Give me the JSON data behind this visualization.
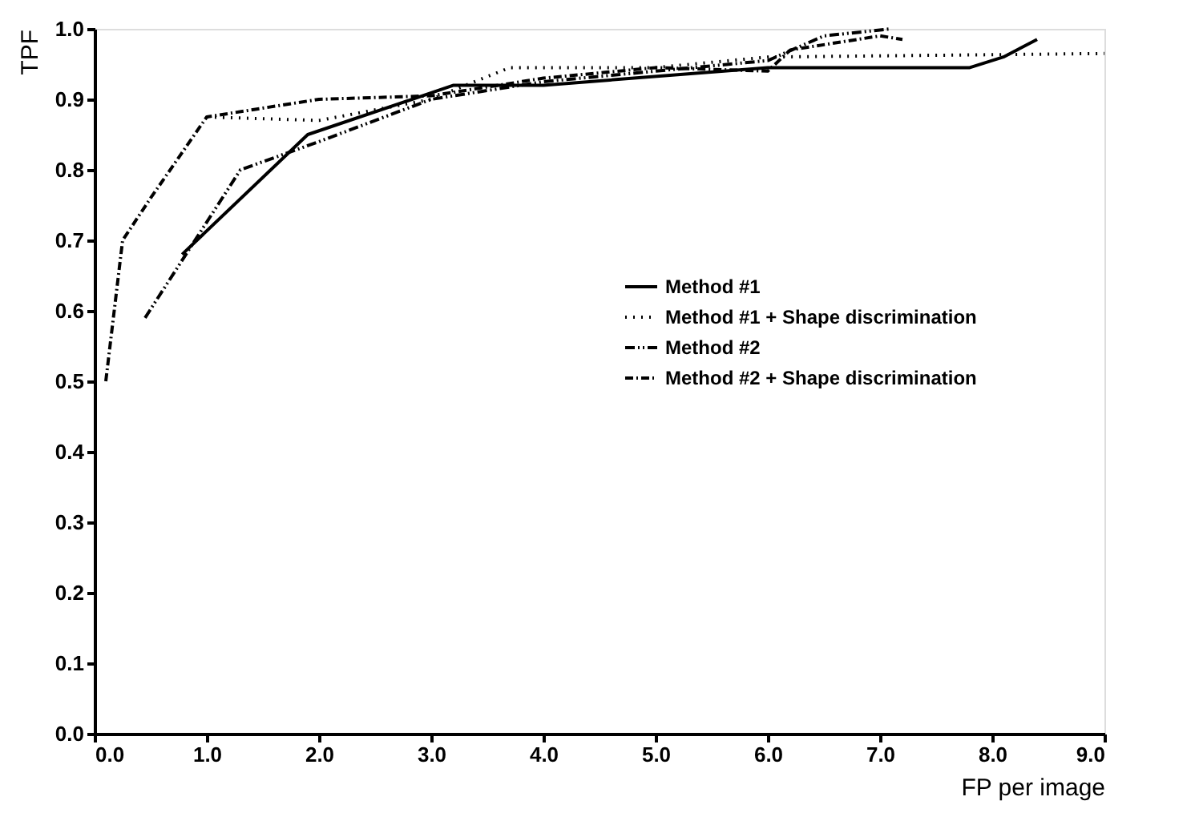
{
  "chart_data": {
    "type": "line",
    "xlabel": "FP per image",
    "ylabel": "TPF",
    "xlim": [
      0,
      9
    ],
    "ylim": [
      0,
      1
    ],
    "xticks": [
      {
        "value": 0,
        "label": "0.0"
      },
      {
        "value": 1,
        "label": "1.0"
      },
      {
        "value": 2,
        "label": "2.0"
      },
      {
        "value": 3,
        "label": "3.0"
      },
      {
        "value": 4,
        "label": "4.0"
      },
      {
        "value": 5,
        "label": "5.0"
      },
      {
        "value": 6,
        "label": "6.0"
      },
      {
        "value": 7,
        "label": "7.0"
      },
      {
        "value": 8,
        "label": "8.0"
      },
      {
        "value": 9,
        "label": "9.0"
      }
    ],
    "yticks": [
      {
        "value": 0,
        "label": "0.0"
      },
      0.1,
      0.2,
      0.3,
      0.4,
      0.5,
      0.6,
      0.7,
      0.8,
      0.9,
      {
        "value": 1,
        "label": "1.0"
      }
    ],
    "grid": false,
    "legend": "right",
    "marker": "none",
    "series": [
      {
        "name": "Method #1",
        "color": "#000000",
        "line_style": "solid",
        "x": [
          0.78,
          1.9,
          3.2,
          4.0,
          6.0,
          7.8,
          8.1,
          8.4
        ],
        "values": [
          0.68,
          0.85,
          0.92,
          0.92,
          0.945,
          0.945,
          0.96,
          0.985
        ]
      },
      {
        "name": "Method #1 + Shape discrimination",
        "color": "#000000",
        "line_style": "dotted",
        "x": [
          1.0,
          2.0,
          3.0,
          3.7,
          5.0,
          6.0,
          9.0
        ],
        "values": [
          0.875,
          0.87,
          0.9,
          0.945,
          0.945,
          0.96,
          0.965
        ]
      },
      {
        "name": "Method #2",
        "color": "#000000",
        "line_style": "dashdotdot",
        "x": [
          0.45,
          1.3,
          2.0,
          3.0,
          4.0,
          5.0,
          6.0,
          6.5,
          7.1
        ],
        "values": [
          0.59,
          0.8,
          0.84,
          0.9,
          0.925,
          0.94,
          0.955,
          0.99,
          1.0
        ]
      },
      {
        "name": "Method #2 + Shape discrimination",
        "color": "#000000",
        "line_style": "dashdot",
        "x": [
          0.1,
          0.25,
          0.5,
          1.0,
          2.0,
          3.0,
          4.0,
          5.0,
          6.0,
          6.2,
          7.0,
          7.2
        ],
        "values": [
          0.5,
          0.7,
          0.76,
          0.875,
          0.9,
          0.905,
          0.93,
          0.945,
          0.94,
          0.97,
          0.99,
          0.985
        ]
      }
    ]
  }
}
